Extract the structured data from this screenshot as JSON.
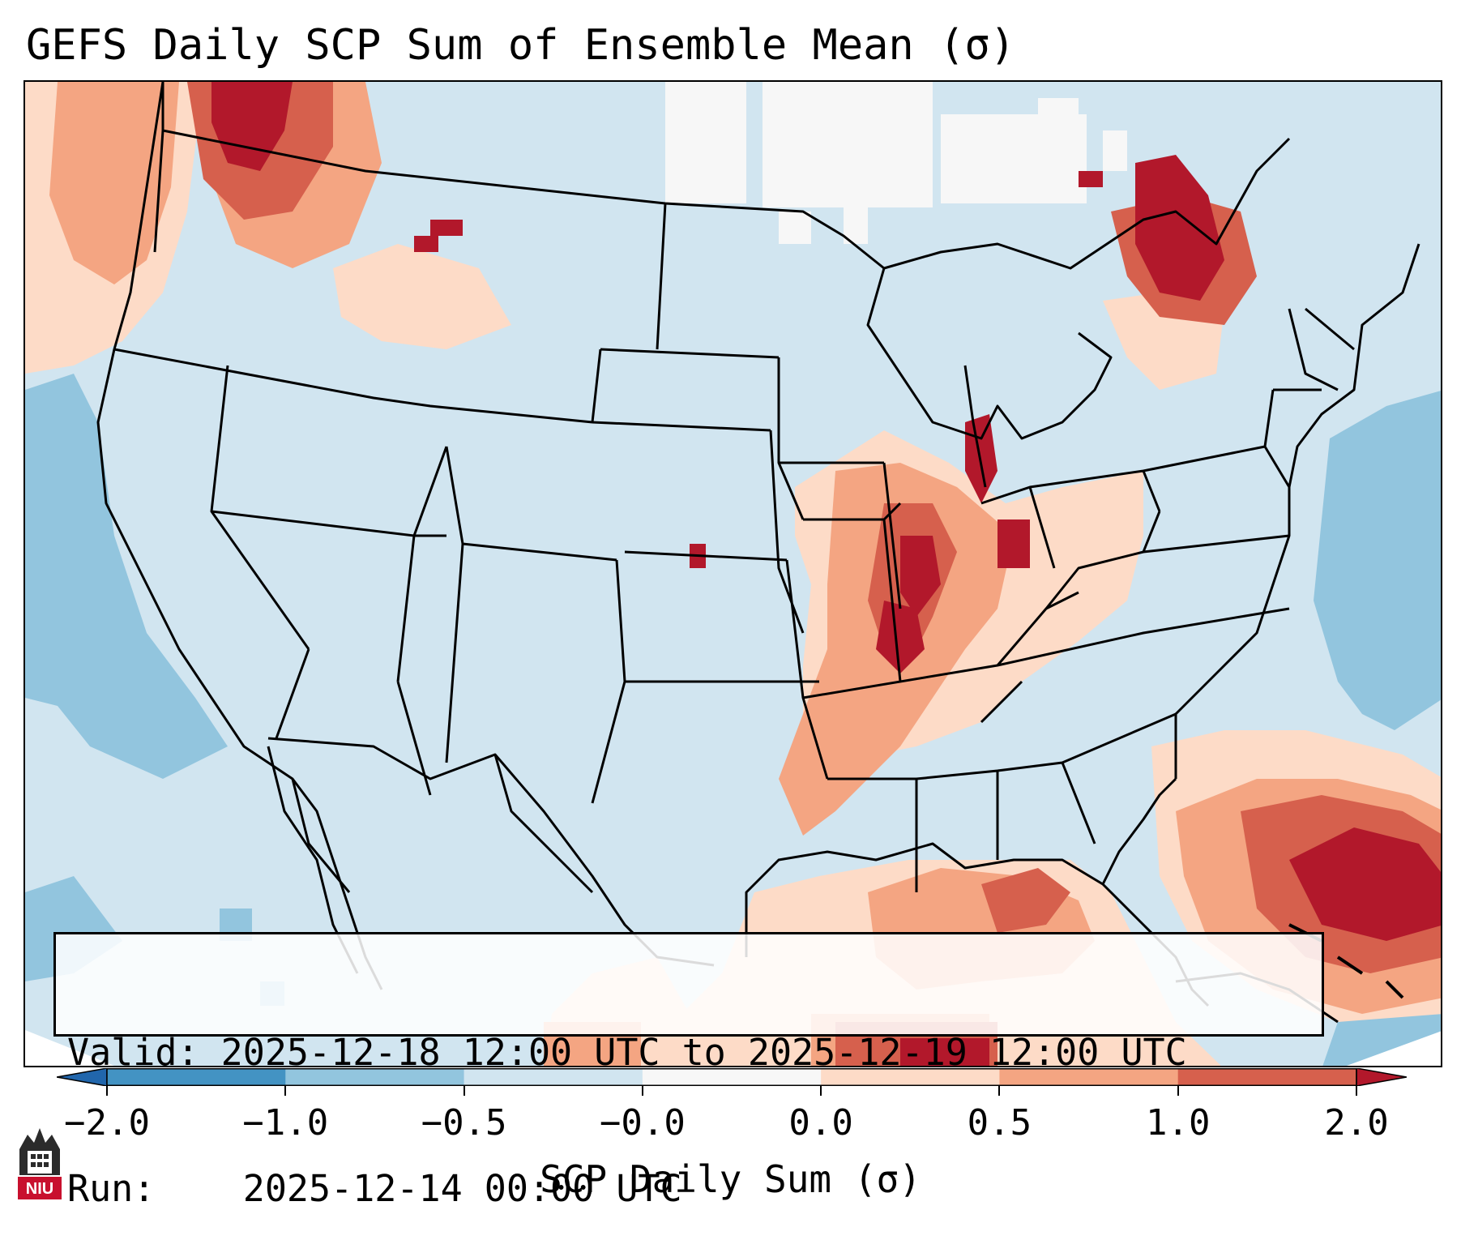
{
  "title": "GEFS Daily SCP Sum of Ensemble Mean (σ)",
  "info": {
    "valid_label": "Valid:",
    "valid_value": "2025-12-18 12:00 UTC to 2025-12-19 12:00 UTC",
    "run_label": "Run:",
    "run_value": "2025-12-14 00:00 UTC"
  },
  "colorbar": {
    "label": "SCP Daily Sum (σ)",
    "ticks": [
      "−2.0",
      "−1.0",
      "−0.5",
      "−0.0",
      "0.0",
      "0.5",
      "1.0",
      "2.0"
    ],
    "bins": [
      {
        "from": -2.0,
        "to": -1.0,
        "color": "#4393c3"
      },
      {
        "from": -1.0,
        "to": -0.5,
        "color": "#92c5de"
      },
      {
        "from": -0.5,
        "to": -0.0,
        "color": "#d1e5f0"
      },
      {
        "from": -0.0,
        "to": 0.0,
        "color": "#f7f7f7"
      },
      {
        "from": 0.0,
        "to": 0.5,
        "color": "#fddbc7"
      },
      {
        "from": 0.5,
        "to": 1.0,
        "color": "#f4a582"
      },
      {
        "from": 1.0,
        "to": 2.0,
        "color": "#d6604d"
      }
    ],
    "under_color": "#2166ac",
    "over_color": "#b2182b"
  },
  "map": {
    "ocean_water_color": "#d1e5f0",
    "highlights": [
      "Ohio Valley and Mid-South",
      "Gulf of Mexico",
      "Western Atlantic",
      "Pacific Northwest",
      "Quebec"
    ]
  },
  "logo": {
    "text": "NIU",
    "color": "#c8102e"
  }
}
